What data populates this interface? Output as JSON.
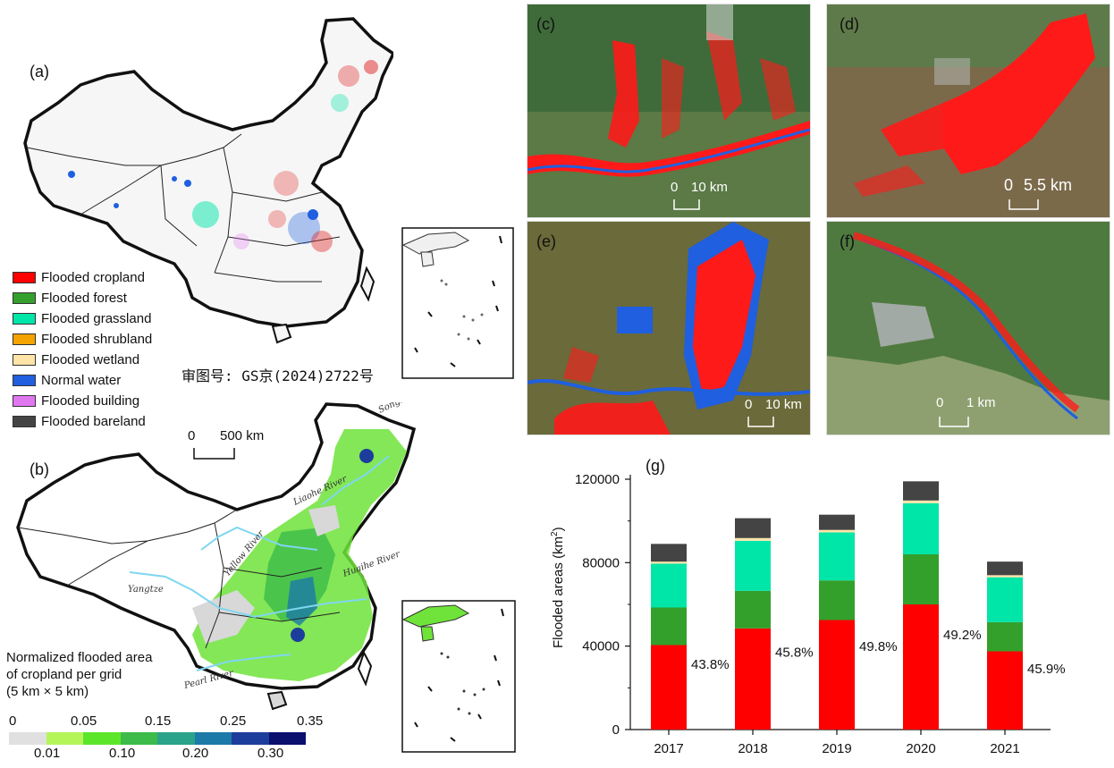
{
  "panels": {
    "a": "(a)",
    "b": "(b)",
    "c": "(c)",
    "d": "(d)",
    "e": "(e)",
    "f": "(f)",
    "g": "(g)"
  },
  "legend": [
    {
      "label": "Flooded cropland",
      "color": "#ff0000"
    },
    {
      "label": "Flooded forest",
      "color": "#33a02c"
    },
    {
      "label": "Flooded grassland",
      "color": "#00e5a8"
    },
    {
      "label": "Flooded shrubland",
      "color": "#f4a300"
    },
    {
      "label": "Flooded wetland",
      "color": "#ffe4a8"
    },
    {
      "label": "Normal water",
      "color": "#1f5fe0"
    },
    {
      "label": "Flooded building",
      "color": "#e077f0"
    },
    {
      "label": "Flooded bareland",
      "color": "#444444"
    }
  ],
  "review_number": "审图号: GS京(2024)2722号",
  "map_scale": {
    "zero": "0",
    "value": "500 km"
  },
  "rivers": {
    "songhua": "Songhua River",
    "liaohe": "Liaohe River",
    "yellow": "Yellow River",
    "huaihe": "Huaihe River",
    "yangtze": "Yangtze",
    "pearl": "Pearl River"
  },
  "colorbar": {
    "title_lines": [
      "Normalized flooded area",
      "of cropland  per grid",
      "(5 km × 5 km)"
    ],
    "colors": [
      "#e0e0e0",
      "#b4f55a",
      "#5ce62a",
      "#3dbb4a",
      "#2aa38a",
      "#1c7aa8",
      "#1c3d9c",
      "#0b0f6e"
    ],
    "top_ticks": [
      "0",
      "0.05",
      "0.15",
      "0.25",
      "0.35"
    ],
    "bottom_ticks": [
      "0.01",
      "0.10",
      "0.20",
      "0.30"
    ]
  },
  "sat_scales": {
    "c": {
      "zero": "0",
      "value": "10 km"
    },
    "d": {
      "zero": "0",
      "value": "5.5 km"
    },
    "e": {
      "zero": "0",
      "value": "10 km"
    },
    "f": {
      "zero": "0",
      "value": "1 km"
    }
  },
  "chart_data": {
    "type": "bar",
    "stacked": true,
    "categories": [
      "2017",
      "2018",
      "2019",
      "2020",
      "2021"
    ],
    "ylabel_main": "Flooded areas (km",
    "ylabel_sup": "2",
    "ylabel_end": ")",
    "ylim": [
      0,
      120000
    ],
    "yticks": [
      "0",
      "40000",
      "80000",
      "120000"
    ],
    "series": [
      {
        "name": "Flooded cropland",
        "color": "#ff0000",
        "values": [
          40500,
          48500,
          52500,
          60000,
          37500
        ]
      },
      {
        "name": "Flooded forest",
        "color": "#33a02c",
        "values": [
          18000,
          18000,
          19000,
          24000,
          14000
        ]
      },
      {
        "name": "Flooded grassland",
        "color": "#00e5a8",
        "values": [
          21000,
          24000,
          23000,
          24500,
          21500
        ]
      },
      {
        "name": "Flooded wetland",
        "color": "#ffe4a8",
        "values": [
          1000,
          1300,
          1200,
          1300,
          1000
        ]
      },
      {
        "name": "Flooded bareland",
        "color": "#444444",
        "values": [
          8500,
          9500,
          7300,
          9200,
          6500
        ]
      }
    ],
    "data_labels": [
      "43.8%",
      "45.8%",
      "49.8%",
      "49.2%",
      "45.9%"
    ]
  }
}
